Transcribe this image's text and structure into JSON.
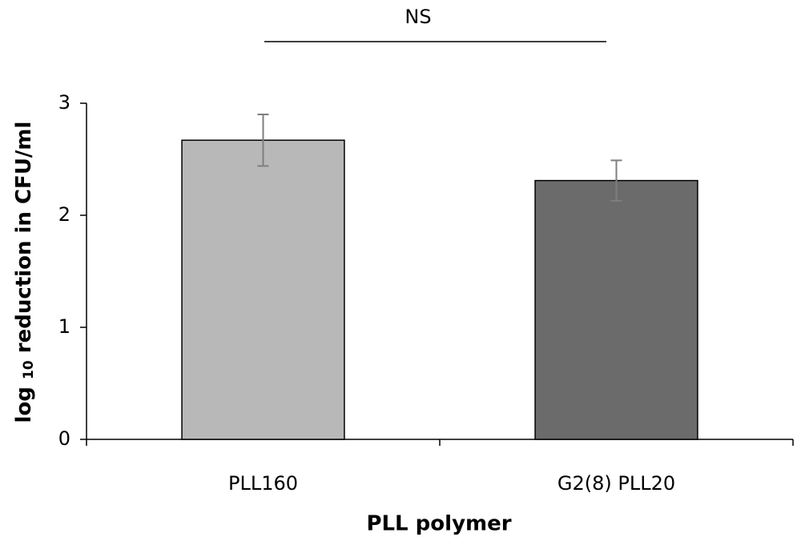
{
  "chart_data": {
    "type": "bar",
    "annotation": "NS",
    "x_label": "PLL polymer",
    "y_label": {
      "prefix": "log",
      "subscript": "10",
      "text": "reduction in CFU/ml"
    },
    "categories": [
      "PLL160",
      "G2(8) PLL20"
    ],
    "values": [
      2.67,
      2.31
    ],
    "errors": [
      0.23,
      0.18
    ],
    "colors": [
      "#b8b8b8",
      "#6b6b6b"
    ],
    "error_color": "#7f7f7f",
    "ylim": [
      0,
      3
    ],
    "yticks": [
      0,
      1,
      2,
      3
    ],
    "grid": false
  }
}
